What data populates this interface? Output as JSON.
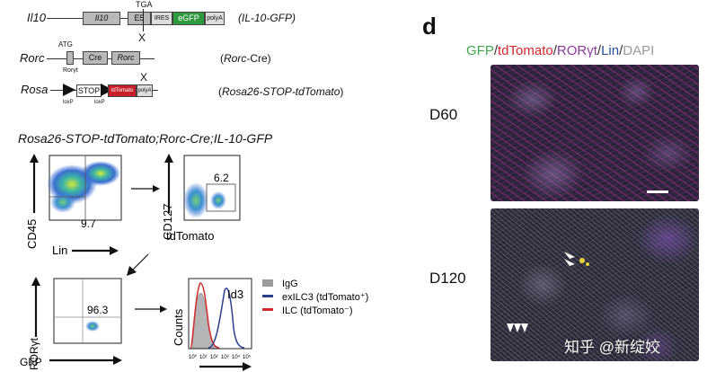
{
  "constructs": {
    "il10": {
      "gene": "Il10",
      "boxes": [
        "Il10",
        "E5",
        "IRES",
        "eGFP",
        "polyA"
      ],
      "stop_codon": "TGA",
      "cross": "X",
      "name": "(IL-10-GFP)"
    },
    "rorc": {
      "gene": "Rorc",
      "start_codon": "ATG",
      "boxes": [
        "Cre",
        "Rorc"
      ],
      "isoform": "Rorγt",
      "name": "(Rorc-Cre)"
    },
    "rosa": {
      "gene": "Rosa",
      "boxes": [
        "STOP",
        "tdTomato",
        "polyA"
      ],
      "loxp1": "loxP",
      "loxp2": "loxP",
      "cross": "X",
      "name": "(Rosa26-STOP-tdTomato)"
    }
  },
  "genotype_title": "Rosa26-STOP-tdTomato;Rorc-Cre;IL-10-GFP",
  "flow": {
    "plot1": {
      "ylabel": "CD45",
      "xlabel": "Lin",
      "gate_value": "9.7"
    },
    "plot2": {
      "ylabel": "CD127",
      "xlabel": "tdTomato",
      "gate_value": "6.2"
    },
    "plot3": {
      "ylabel": "RORγt",
      "xlabel": "GFP",
      "gate_value": "96.3"
    },
    "histogram": {
      "ylabel": "Counts",
      "title": "Id3",
      "x_ticks": [
        "10⁰",
        "10¹",
        "10²",
        "10³",
        "10⁴",
        "10⁵"
      ]
    },
    "legend": [
      {
        "label": "IgG",
        "color": "#9a9a9a"
      },
      {
        "label": "exILC3 (tdTomato⁺)",
        "color": "#2b3f8f"
      },
      {
        "label": "ILC (tdTomato⁻)",
        "color": "#d22a2a"
      }
    ]
  },
  "panel_d": {
    "letter": "d",
    "stain": {
      "parts": [
        {
          "text": "GFP",
          "color": "#3fa84a"
        },
        {
          "text": "/",
          "color": "#333333"
        },
        {
          "text": "tdTomato",
          "color": "#d6262d"
        },
        {
          "text": "/",
          "color": "#333333"
        },
        {
          "text": "RORγt",
          "color": "#8b3f98"
        },
        {
          "text": "/",
          "color": "#333333"
        },
        {
          "text": "Lin",
          "color": "#2b4c9b"
        },
        {
          "text": "/",
          "color": "#333333"
        },
        {
          "text": "DAPI",
          "color": "#9a9a9a"
        }
      ]
    },
    "timepoints": [
      "D60",
      "D120"
    ],
    "watermark": "知乎 @新绽姣"
  }
}
